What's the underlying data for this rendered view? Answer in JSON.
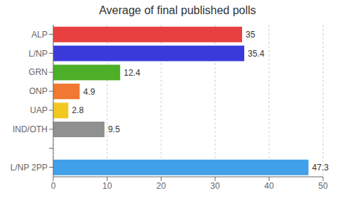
{
  "chart_data": {
    "type": "bar",
    "orientation": "horizontal",
    "title": "Average of final published polls",
    "categories": [
      "ALP",
      "L/NP",
      "GRN",
      "ONP",
      "UAP",
      "IND/OTH",
      null,
      "L/NP 2PP"
    ],
    "values": [
      35.0,
      35.4,
      12.4,
      4.9,
      2.8,
      9.5,
      null,
      47.3
    ],
    "colors": [
      "#e84040",
      "#3a3adb",
      "#4caf27",
      "#f07830",
      "#f0c820",
      "#909090",
      null,
      "#40a0e8"
    ],
    "xlim": [
      0,
      50
    ],
    "xticks": [
      0,
      10,
      20,
      30,
      40,
      50
    ],
    "grid": true,
    "data_labels": true
  }
}
